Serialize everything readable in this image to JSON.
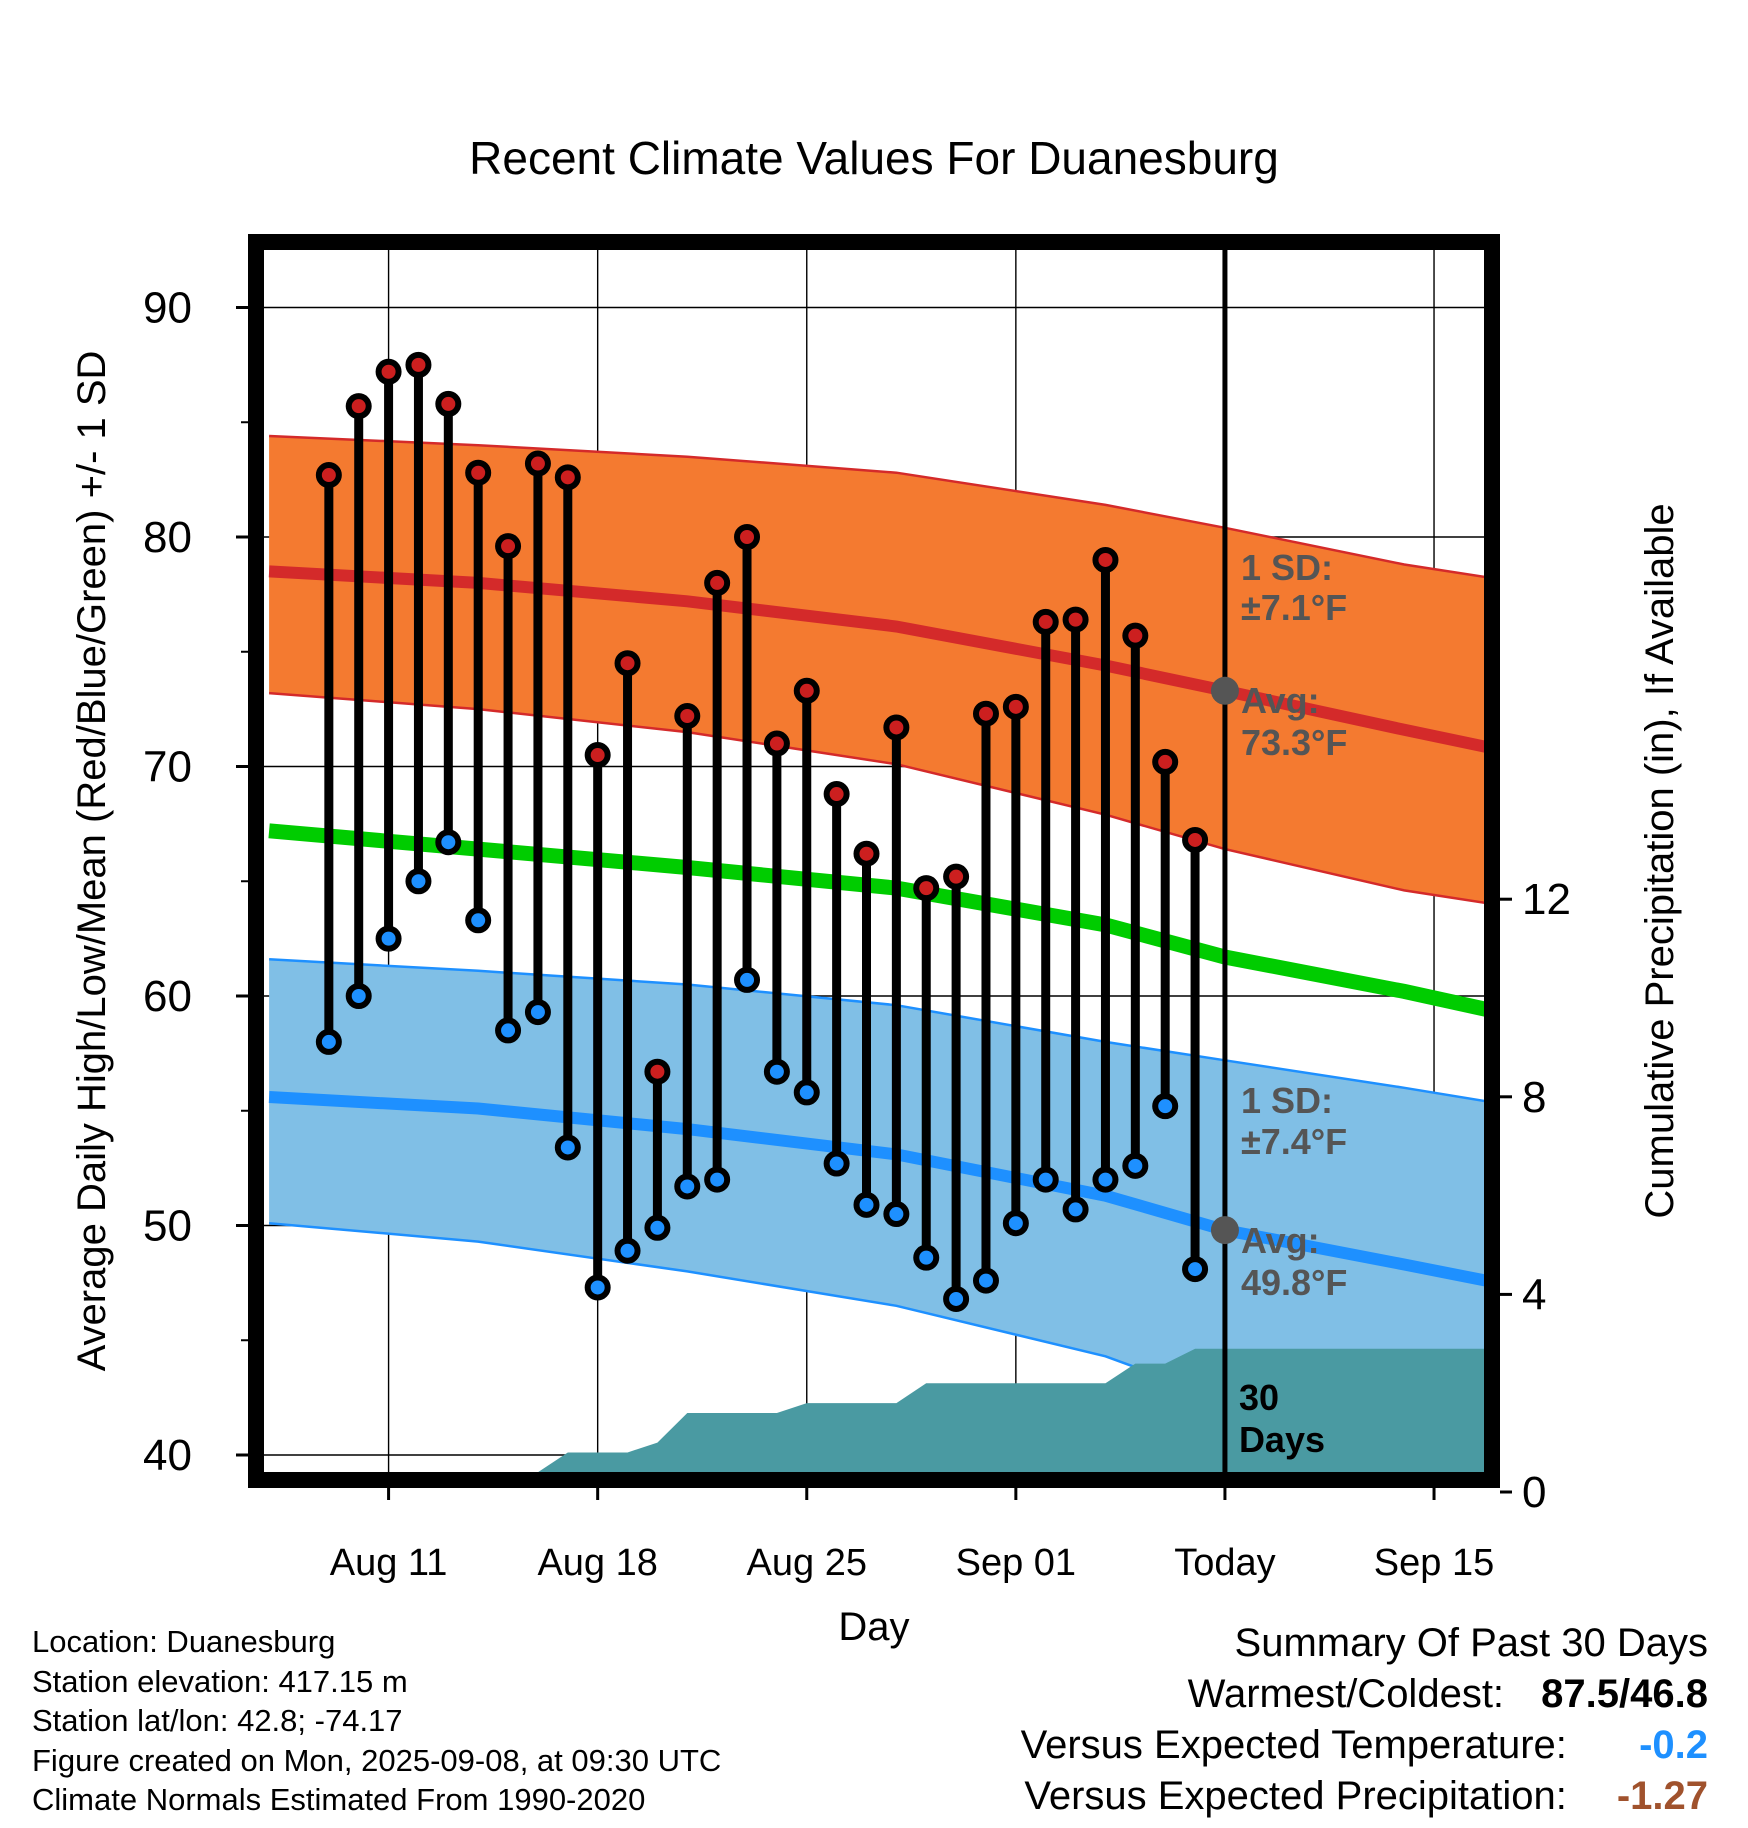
{
  "chart_data": {
    "type": "line",
    "title": "Recent Climate Values For Duanesburg",
    "xlabel": "Day",
    "ylabel": "Average Daily High/Low/Mean (Red/Blue/Green) +/- 1 SD",
    "y2label": "Cumulative Precipitation (in), If Available",
    "ylim": [
      39,
      93
    ],
    "y2lim": [
      0,
      20
    ],
    "yticks": [
      40,
      50,
      60,
      70,
      80,
      90
    ],
    "y2ticks": [
      0,
      4,
      8,
      12
    ],
    "xlim": [
      "2025-08-07",
      "2025-09-21"
    ],
    "xticks": [
      {
        "date": "2025-08-11",
        "label": "Aug 11"
      },
      {
        "date": "2025-08-18",
        "label": "Aug 18"
      },
      {
        "date": "2025-08-25",
        "label": "Aug 25"
      },
      {
        "date": "2025-09-01",
        "label": "Sep 01"
      },
      {
        "date": "2025-09-08",
        "label": "Today"
      },
      {
        "date": "2025-09-15",
        "label": "Sep 15"
      }
    ],
    "grid": true,
    "today": "2025-09-08",
    "today_label_value": "30",
    "today_label_unit": "Days",
    "normals": {
      "dates": [
        "2025-08-07",
        "2025-08-14",
        "2025-08-21",
        "2025-08-28",
        "2025-09-04",
        "2025-09-08",
        "2025-09-14",
        "2025-09-21"
      ],
      "high_mean": [
        78.5,
        78.0,
        77.2,
        76.1,
        74.4,
        73.3,
        71.6,
        69.7
      ],
      "high_upper": [
        84.4,
        84.0,
        83.5,
        82.8,
        81.4,
        80.4,
        78.8,
        77.4
      ],
      "high_lower": [
        73.2,
        72.5,
        71.5,
        70.1,
        67.9,
        66.4,
        64.6,
        63.2
      ],
      "mean": [
        67.2,
        66.4,
        65.6,
        64.7,
        63.1,
        61.7,
        60.2,
        58.2
      ],
      "low_mean": [
        55.6,
        55.1,
        54.2,
        53.1,
        51.3,
        49.8,
        48.3,
        46.5
      ],
      "low_upper": [
        61.6,
        61.1,
        60.5,
        59.6,
        58.0,
        57.2,
        56.0,
        54.5
      ],
      "low_lower": [
        50.1,
        49.3,
        48.0,
        46.5,
        44.3,
        42.4,
        41.2,
        40.0
      ]
    },
    "annotations": [
      {
        "label": "1 SD:",
        "value": "±7.1°F"
      },
      {
        "label": "Avg:",
        "value": "73.3°F"
      },
      {
        "label": "1 SD:",
        "value": "±7.4°F"
      },
      {
        "label": "Avg:",
        "value": "49.8°F"
      }
    ],
    "daily_dates": [
      "2025-08-09",
      "2025-08-10",
      "2025-08-11",
      "2025-08-12",
      "2025-08-13",
      "2025-08-14",
      "2025-08-15",
      "2025-08-16",
      "2025-08-17",
      "2025-08-18",
      "2025-08-19",
      "2025-08-20",
      "2025-08-21",
      "2025-08-22",
      "2025-08-23",
      "2025-08-24",
      "2025-08-25",
      "2025-08-26",
      "2025-08-27",
      "2025-08-28",
      "2025-08-29",
      "2025-08-30",
      "2025-08-31",
      "2025-09-01",
      "2025-09-02",
      "2025-09-03",
      "2025-09-04",
      "2025-09-05",
      "2025-09-06",
      "2025-09-07"
    ],
    "series": [
      {
        "name": "High",
        "values": [
          82.7,
          85.7,
          87.2,
          87.5,
          85.8,
          82.8,
          79.6,
          83.2,
          82.6,
          70.5,
          74.5,
          56.7,
          72.2,
          78.0,
          80.0,
          71.0,
          73.3,
          68.8,
          66.2,
          71.7,
          64.7,
          65.2,
          72.3,
          72.6,
          76.3,
          76.4,
          79.0,
          75.7,
          70.2,
          66.8
        ]
      },
      {
        "name": "Low",
        "values": [
          58.0,
          60.0,
          62.5,
          65.0,
          66.7,
          63.3,
          58.5,
          59.3,
          53.4,
          47.3,
          48.9,
          49.9,
          51.7,
          52.0,
          60.7,
          56.7,
          55.8,
          52.7,
          50.9,
          50.5,
          48.6,
          46.8,
          47.6,
          50.1,
          52.0,
          50.7,
          52.0,
          52.6,
          55.2,
          48.1
        ]
      }
    ],
    "precip": {
      "dates": [
        "2025-08-07",
        "2025-08-14",
        "2025-08-15",
        "2025-08-16",
        "2025-08-17",
        "2025-08-18",
        "2025-08-19",
        "2025-08-20",
        "2025-08-21",
        "2025-08-22",
        "2025-08-23",
        "2025-08-24",
        "2025-08-25",
        "2025-08-26",
        "2025-08-27",
        "2025-08-28",
        "2025-08-29",
        "2025-08-30",
        "2025-08-31",
        "2025-09-01",
        "2025-09-02",
        "2025-09-03",
        "2025-09-04",
        "2025-09-05",
        "2025-09-06",
        "2025-09-07",
        "2025-09-08",
        "2025-09-21"
      ],
      "values": [
        0,
        0,
        0,
        0.4,
        0.8,
        0.8,
        0.8,
        1.0,
        1.6,
        1.6,
        1.6,
        1.6,
        1.8,
        1.8,
        1.8,
        1.8,
        2.2,
        2.2,
        2.2,
        2.2,
        2.2,
        2.2,
        2.2,
        2.6,
        2.6,
        2.9,
        2.9,
        2.9
      ]
    },
    "colors": {
      "high_band": "#f47a30",
      "high_line": "#d42a2a",
      "low_band": "#80bfe6",
      "low_line": "#1e90ff",
      "mean_line": "#00cc00",
      "precip": "#4a9aa2",
      "high_dot": "#cc1f1f",
      "low_dot": "#1e90ff",
      "annotation": "#555555"
    }
  },
  "footer": {
    "location": "Location: Duanesburg",
    "elevation": "Station elevation: 417.15 m",
    "latlon": "Station lat/lon: 42.8; -74.17",
    "created": "Figure created on Mon, 2025-09-08, at 09:30 UTC",
    "normals": "Climate Normals Estimated From 1990-2020"
  },
  "summary": {
    "heading": "Summary Of Past 30 Days",
    "warmest_label": "Warmest/Coldest:",
    "warmest_value": "87.5/46.8",
    "temp_label": "Versus Expected Temperature:",
    "temp_value": "-0.2",
    "temp_color": "#1e90ff",
    "precip_label": "Versus Expected Precipitation:",
    "precip_value": "-1.27",
    "precip_color": "#a0522d"
  }
}
